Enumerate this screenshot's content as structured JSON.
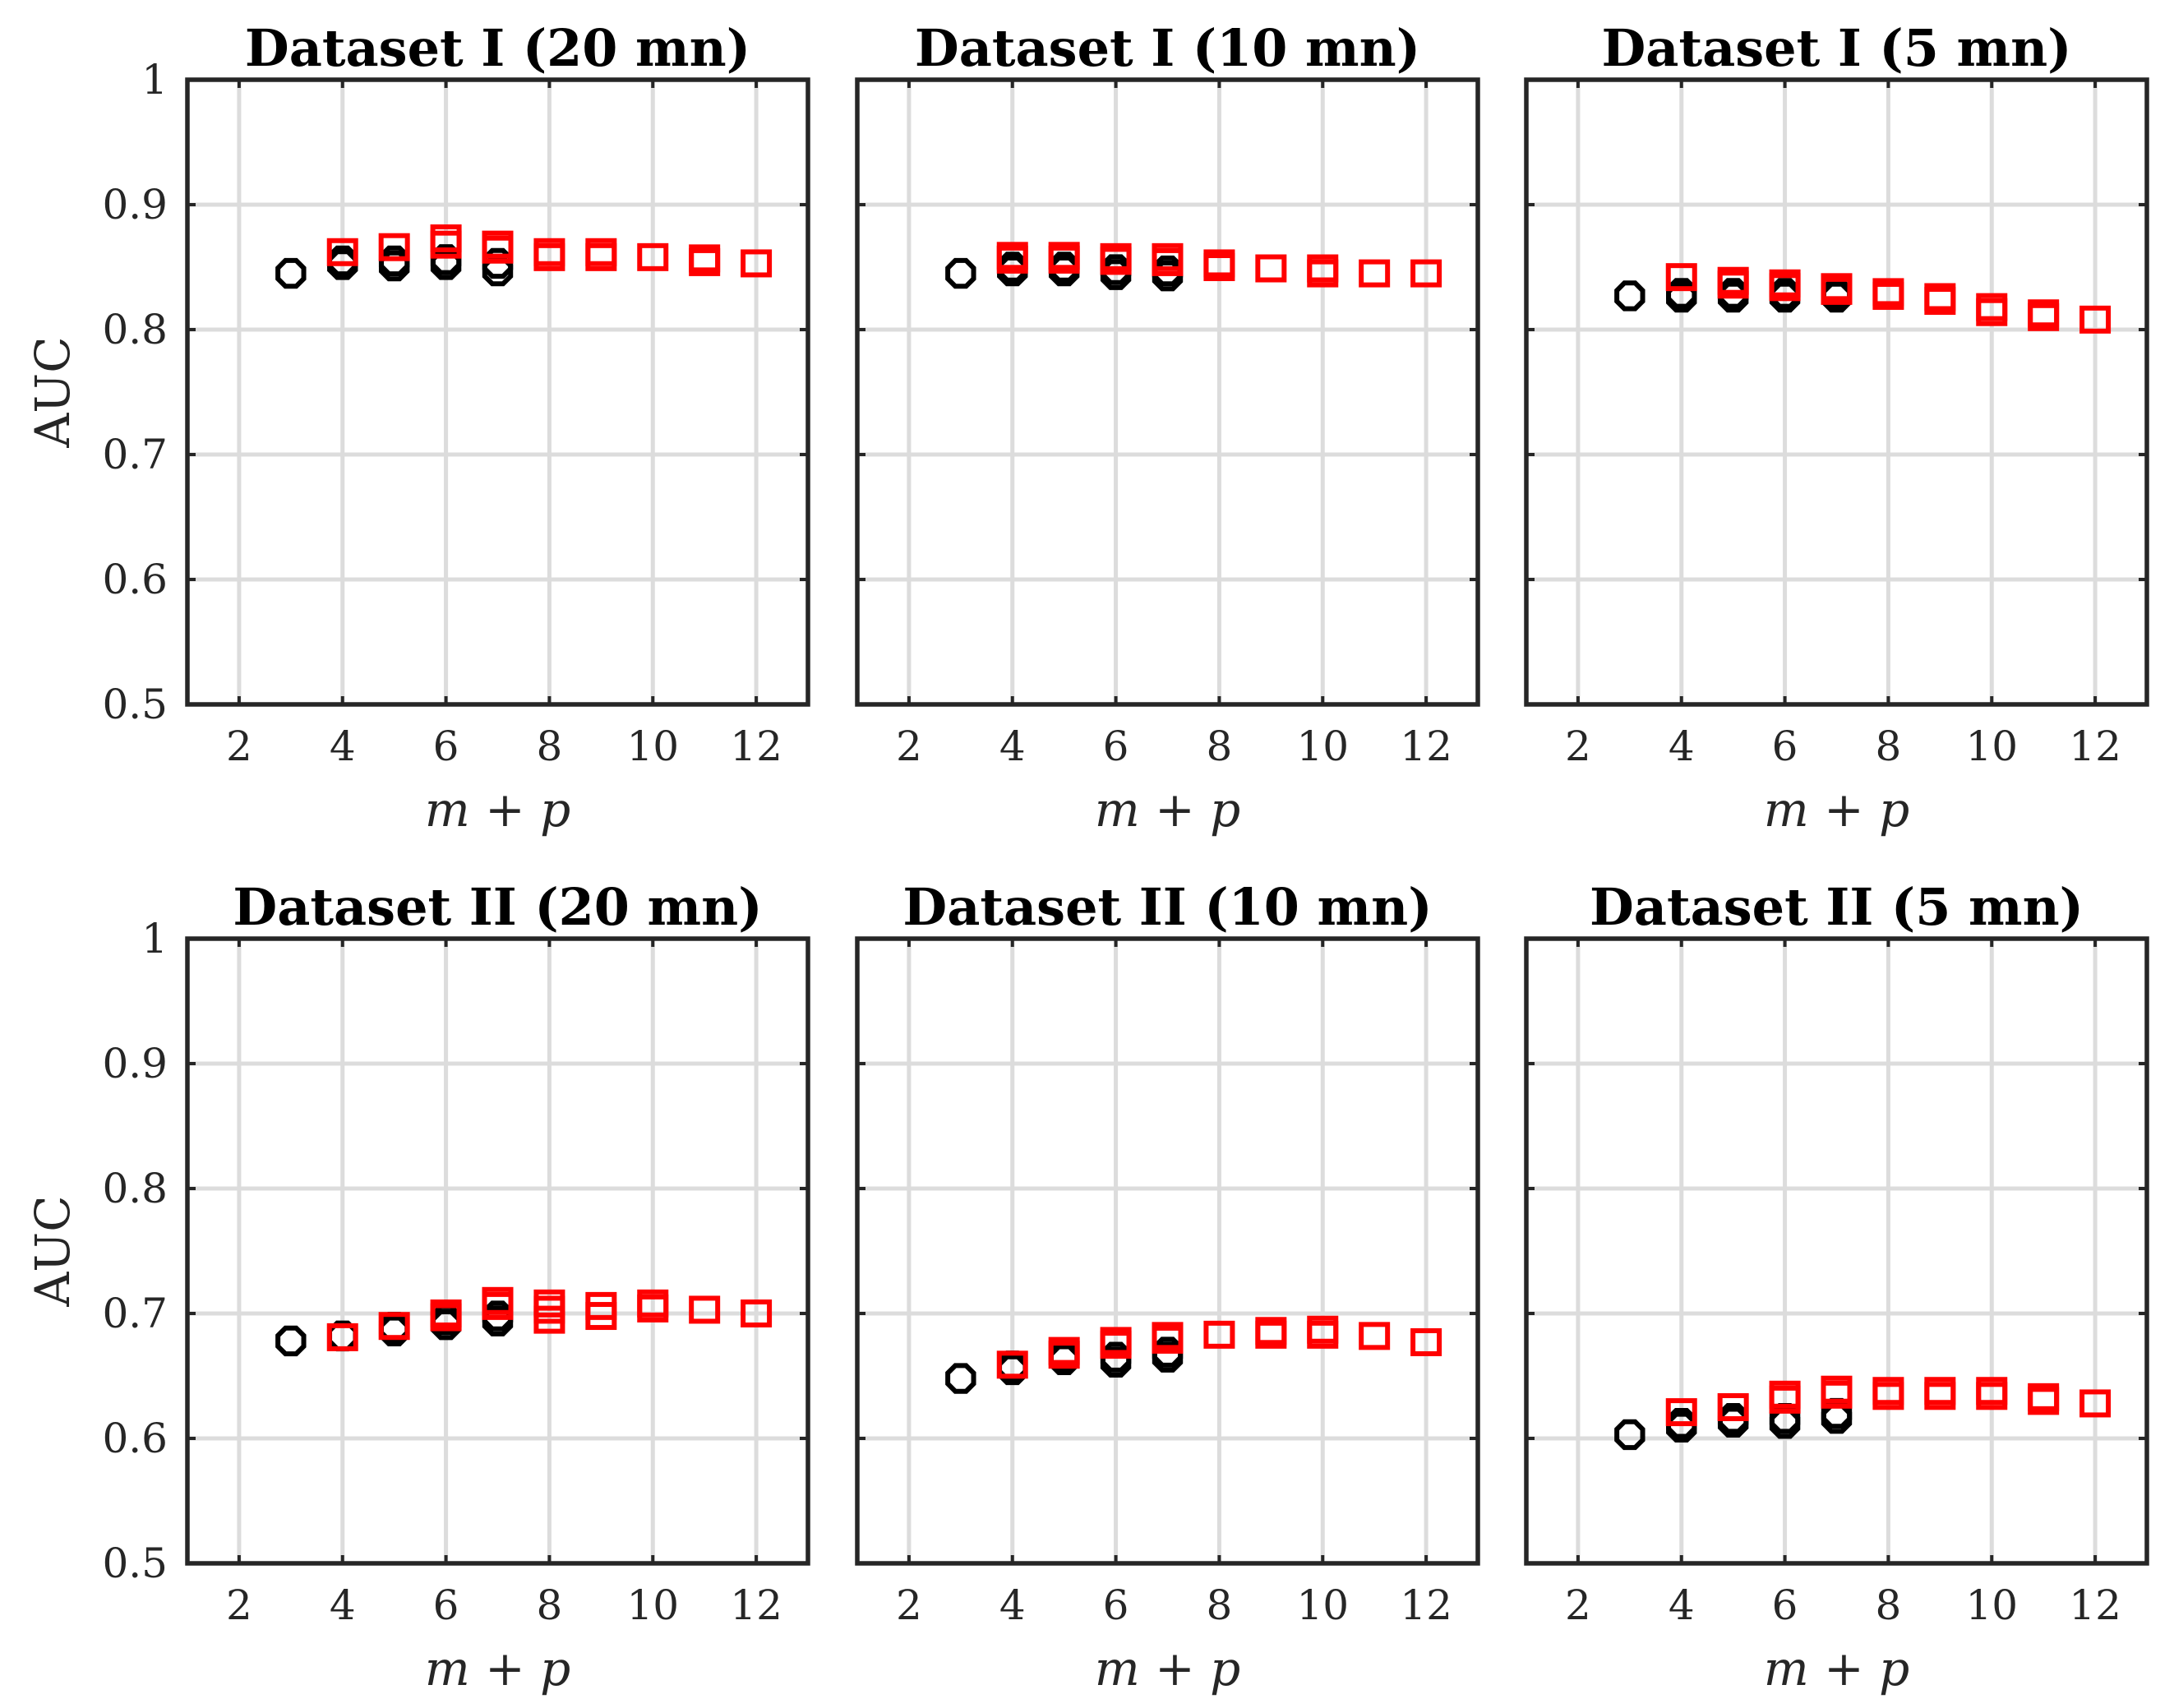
{
  "colors": {
    "series_circle": "#000000",
    "series_square": "#ff0000",
    "grid": "#dcdcdc",
    "axes": "#262626"
  },
  "chart_data": [
    {
      "type": "scatter",
      "title": "Dataset I (20 mn)",
      "xlabel": "m + p",
      "ylabel": "AUC",
      "xlim": [
        1,
        13
      ],
      "ylim": [
        0.5,
        1
      ],
      "xticks": [
        2,
        4,
        6,
        8,
        10,
        12
      ],
      "yticks": [
        0.5,
        0.6,
        0.7,
        0.8,
        0.9,
        1
      ],
      "xtick_labels": [
        "2",
        "4",
        "6",
        "8",
        "10",
        "12"
      ],
      "ytick_labels": [
        "0.5",
        "0.6",
        "0.7",
        "0.8",
        "0.9",
        "1"
      ],
      "grid": true,
      "series": [
        {
          "name": "circle",
          "marker": "circle",
          "points": [
            [
              3,
              0.845
            ],
            [
              4,
              0.852
            ],
            [
              4,
              0.855
            ],
            [
              5,
              0.851
            ],
            [
              5,
              0.855
            ],
            [
              6,
              0.852
            ],
            [
              6,
              0.856
            ],
            [
              7,
              0.847
            ],
            [
              7,
              0.853
            ]
          ]
        },
        {
          "name": "square",
          "marker": "square",
          "points": [
            [
              4,
              0.862
            ],
            [
              5,
              0.866
            ],
            [
              6,
              0.868
            ],
            [
              6,
              0.873
            ],
            [
              7,
              0.864
            ],
            [
              7,
              0.868
            ],
            [
              8,
              0.858
            ],
            [
              8,
              0.862
            ],
            [
              9,
              0.858
            ],
            [
              9,
              0.862
            ],
            [
              10,
              0.858
            ],
            [
              11,
              0.854
            ],
            [
              11,
              0.857
            ],
            [
              12,
              0.853
            ]
          ]
        }
      ]
    },
    {
      "type": "scatter",
      "title": "Dataset I (10 mn)",
      "xlabel": "m + p",
      "ylabel": "",
      "xlim": [
        1,
        13
      ],
      "ylim": [
        0.5,
        1
      ],
      "xticks": [
        2,
        4,
        6,
        8,
        10,
        12
      ],
      "yticks": [
        0.5,
        0.6,
        0.7,
        0.8,
        0.9,
        1
      ],
      "xtick_labels": [
        "2",
        "4",
        "6",
        "8",
        "10",
        "12"
      ],
      "ytick_labels": [],
      "grid": true,
      "series": [
        {
          "name": "circle",
          "marker": "circle",
          "points": [
            [
              3,
              0.845
            ],
            [
              4,
              0.847
            ],
            [
              4,
              0.85
            ],
            [
              5,
              0.847
            ],
            [
              5,
              0.85
            ],
            [
              6,
              0.844
            ],
            [
              6,
              0.848
            ],
            [
              7,
              0.843
            ],
            [
              7,
              0.847
            ]
          ]
        },
        {
          "name": "square",
          "marker": "square",
          "points": [
            [
              4,
              0.856
            ],
            [
              4,
              0.859
            ],
            [
              5,
              0.856
            ],
            [
              5,
              0.859
            ],
            [
              6,
              0.855
            ],
            [
              6,
              0.858
            ],
            [
              7,
              0.854
            ],
            [
              7,
              0.858
            ],
            [
              8,
              0.85
            ],
            [
              8,
              0.853
            ],
            [
              9,
              0.849
            ],
            [
              10,
              0.845
            ],
            [
              10,
              0.849
            ],
            [
              11,
              0.845
            ],
            [
              12,
              0.845
            ]
          ]
        }
      ]
    },
    {
      "type": "scatter",
      "title": "Dataset I (5 mn)",
      "xlabel": "m + p",
      "ylabel": "",
      "xlim": [
        1,
        13
      ],
      "ylim": [
        0.5,
        1
      ],
      "xticks": [
        2,
        4,
        6,
        8,
        10,
        12
      ],
      "yticks": [
        0.5,
        0.6,
        0.7,
        0.8,
        0.9,
        1
      ],
      "xtick_labels": [
        "2",
        "4",
        "6",
        "8",
        "10",
        "12"
      ],
      "ytick_labels": [],
      "grid": true,
      "series": [
        {
          "name": "circle",
          "marker": "circle",
          "points": [
            [
              3,
              0.827
            ],
            [
              4,
              0.826
            ],
            [
              4,
              0.829
            ],
            [
              5,
              0.826
            ],
            [
              5,
              0.829
            ],
            [
              6,
              0.826
            ],
            [
              6,
              0.829
            ],
            [
              7,
              0.826
            ],
            [
              7,
              0.829
            ]
          ]
        },
        {
          "name": "square",
          "marker": "square",
          "points": [
            [
              4,
              0.842
            ],
            [
              5,
              0.836
            ],
            [
              5,
              0.839
            ],
            [
              6,
              0.834
            ],
            [
              6,
              0.837
            ],
            [
              7,
              0.831
            ],
            [
              7,
              0.834
            ],
            [
              8,
              0.827
            ],
            [
              8,
              0.83
            ],
            [
              9,
              0.823
            ],
            [
              9,
              0.826
            ],
            [
              10,
              0.814
            ],
            [
              10,
              0.818
            ],
            [
              11,
              0.81
            ],
            [
              11,
              0.813
            ],
            [
              12,
              0.808
            ]
          ]
        }
      ]
    },
    {
      "type": "scatter",
      "title": "Dataset II (20 mn)",
      "xlabel": "m + p",
      "ylabel": "AUC",
      "xlim": [
        1,
        13
      ],
      "ylim": [
        0.5,
        1
      ],
      "xticks": [
        2,
        4,
        6,
        8,
        10,
        12
      ],
      "yticks": [
        0.5,
        0.6,
        0.7,
        0.8,
        0.9,
        1
      ],
      "xtick_labels": [
        "2",
        "4",
        "6",
        "8",
        "10",
        "12"
      ],
      "ytick_labels": [
        "0.5",
        "0.6",
        "0.7",
        "0.8",
        "0.9",
        "1"
      ],
      "grid": true,
      "series": [
        {
          "name": "circle",
          "marker": "circle",
          "points": [
            [
              3,
              0.678
            ],
            [
              4,
              0.682
            ],
            [
              5,
              0.686
            ],
            [
              5,
              0.689
            ],
            [
              6,
              0.691
            ],
            [
              6,
              0.695
            ],
            [
              7,
              0.694
            ],
            [
              7,
              0.698
            ]
          ]
        },
        {
          "name": "square",
          "marker": "square",
          "points": [
            [
              4,
              0.681
            ],
            [
              5,
              0.69
            ],
            [
              6,
              0.697
            ],
            [
              6,
              0.7
            ],
            [
              7,
              0.706
            ],
            [
              7,
              0.71
            ],
            [
              8,
              0.695
            ],
            [
              8,
              0.703
            ],
            [
              8,
              0.708
            ],
            [
              9,
              0.698
            ],
            [
              9,
              0.706
            ],
            [
              10,
              0.704
            ],
            [
              10,
              0.708
            ],
            [
              11,
              0.703
            ],
            [
              12,
              0.7
            ]
          ]
        }
      ]
    },
    {
      "type": "scatter",
      "title": "Dataset II (10 mn)",
      "xlabel": "m + p",
      "ylabel": "",
      "xlim": [
        1,
        13
      ],
      "ylim": [
        0.5,
        1
      ],
      "xticks": [
        2,
        4,
        6,
        8,
        10,
        12
      ],
      "yticks": [
        0.5,
        0.6,
        0.7,
        0.8,
        0.9,
        1
      ],
      "xtick_labels": [
        "2",
        "4",
        "6",
        "8",
        "10",
        "12"
      ],
      "ytick_labels": [],
      "grid": true,
      "series": [
        {
          "name": "circle",
          "marker": "circle",
          "points": [
            [
              3,
              0.648
            ],
            [
              4,
              0.655
            ],
            [
              4,
              0.658
            ],
            [
              5,
              0.663
            ],
            [
              5,
              0.666
            ],
            [
              6,
              0.661
            ],
            [
              6,
              0.665
            ],
            [
              7,
              0.665
            ],
            [
              7,
              0.669
            ]
          ]
        },
        {
          "name": "square",
          "marker": "square",
          "points": [
            [
              4,
              0.659
            ],
            [
              5,
              0.667
            ],
            [
              5,
              0.67
            ],
            [
              6,
              0.675
            ],
            [
              6,
              0.678
            ],
            [
              7,
              0.679
            ],
            [
              7,
              0.682
            ],
            [
              8,
              0.683
            ],
            [
              9,
              0.683
            ],
            [
              9,
              0.686
            ],
            [
              10,
              0.683
            ],
            [
              10,
              0.687
            ],
            [
              11,
              0.682
            ],
            [
              12,
              0.677
            ]
          ]
        }
      ]
    },
    {
      "type": "scatter",
      "title": "Dataset II (5 mn)",
      "xlabel": "m + p",
      "ylabel": "",
      "xlim": [
        1,
        13
      ],
      "ylim": [
        0.5,
        1
      ],
      "xticks": [
        2,
        4,
        6,
        8,
        10,
        12
      ],
      "yticks": [
        0.5,
        0.6,
        0.7,
        0.8,
        0.9,
        1
      ],
      "xtick_labels": [
        "2",
        "4",
        "6",
        "8",
        "10",
        "12"
      ],
      "ytick_labels": [],
      "grid": true,
      "series": [
        {
          "name": "circle",
          "marker": "circle",
          "points": [
            [
              3,
              0.603
            ],
            [
              4,
              0.609
            ],
            [
              4,
              0.612
            ],
            [
              5,
              0.613
            ],
            [
              5,
              0.616
            ],
            [
              6,
              0.612
            ],
            [
              6,
              0.616
            ],
            [
              7,
              0.616
            ],
            [
              7,
              0.62
            ]
          ]
        },
        {
          "name": "square",
          "marker": "square",
          "points": [
            [
              4,
              0.621
            ],
            [
              5,
              0.625
            ],
            [
              6,
              0.631
            ],
            [
              6,
              0.635
            ],
            [
              7,
              0.635
            ],
            [
              7,
              0.639
            ],
            [
              8,
              0.634
            ],
            [
              8,
              0.638
            ],
            [
              9,
              0.634
            ],
            [
              9,
              0.638
            ],
            [
              10,
              0.634
            ],
            [
              10,
              0.638
            ],
            [
              11,
              0.63
            ],
            [
              11,
              0.633
            ],
            [
              12,
              0.628
            ]
          ]
        }
      ]
    }
  ]
}
